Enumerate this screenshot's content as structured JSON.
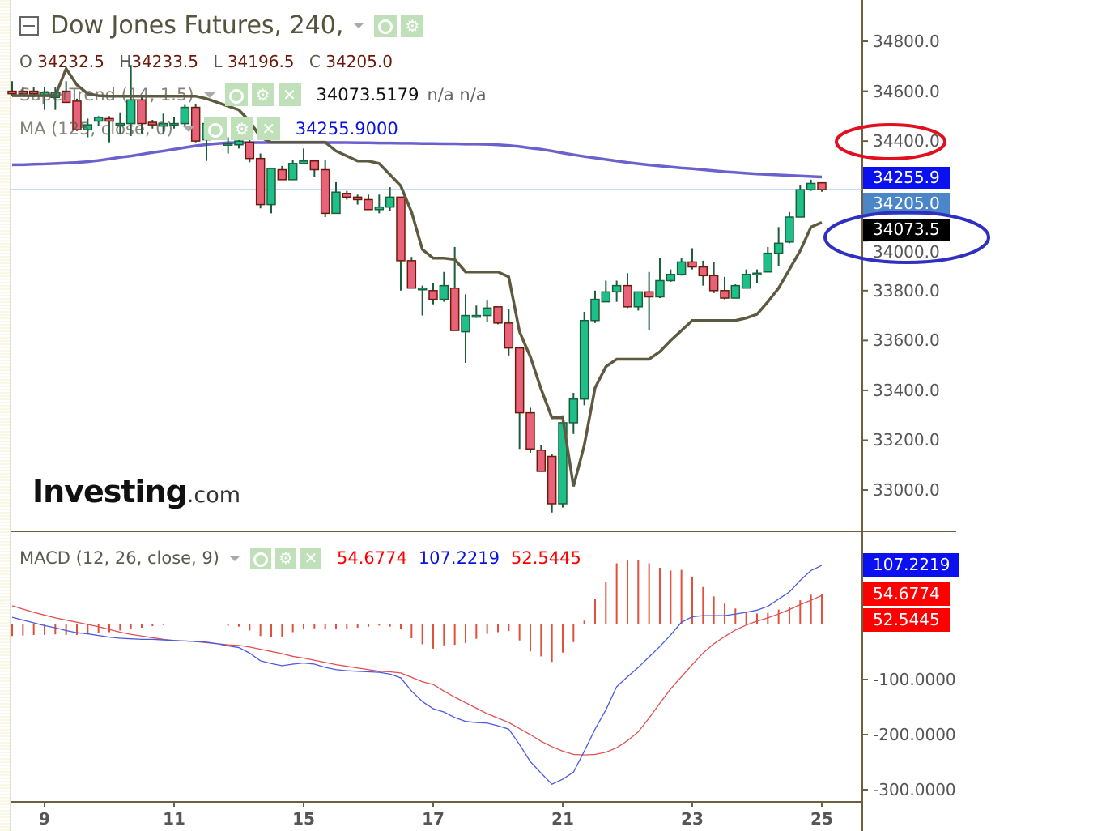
{
  "header": {
    "title": "Dow Jones Futures, 240,",
    "ohlc": {
      "o_label": "O",
      "o": "34232.5",
      "h_label": "H",
      "h": "34233.5",
      "l_label": "L",
      "l": "34196.5",
      "c_label": "C",
      "c": "34205.0"
    }
  },
  "indicators": {
    "supertrend": {
      "label": "SuperTrend (14, 1.5)",
      "value": "34073.5179",
      "extra": "n/a n/a",
      "color": "#5e5a40"
    },
    "ma": {
      "label": "MA (125, close, 0)",
      "value": "34255.9000",
      "color": "#5a50c8"
    },
    "macd": {
      "label": "MACD (12, 26, close, 9)",
      "hist_value": "54.6774",
      "macd_value": "107.2219",
      "signal_value": "52.5445"
    }
  },
  "price_tags": {
    "ma": "34255.9",
    "last": "34205.0",
    "supertrend": "34073.5"
  },
  "macd_tags": {
    "macd": "107.2219",
    "hist": "54.6774",
    "signal": "52.5445"
  },
  "price_axis_labels": [
    "34800.0",
    "34600.0",
    "34400.0",
    "34000.0",
    "33800.0",
    "33600.0",
    "33400.0",
    "33200.0",
    "33000.0"
  ],
  "macd_axis_labels": [
    "-100.0000",
    "-200.0000",
    "-300.0000"
  ],
  "x_axis_labels": [
    "9",
    "11",
    "15",
    "17",
    "21",
    "23",
    "25"
  ],
  "logo": {
    "main": "Investing",
    "suffix": ".com"
  },
  "colors": {
    "up": "#1fbf8a",
    "up_border": "#1a5e3a",
    "down": "#e8637a",
    "down_border": "#6b1a0a",
    "macd": "#4a5ae0",
    "signal": "#e05050",
    "hist": "#e0503a",
    "annotation_red": "#e01020",
    "annotation_blue": "#3030c0"
  },
  "chart_data": {
    "type": "candlestick",
    "title": "Dow Jones Futures, 240,",
    "price_ylim": [
      32838,
      34966
    ],
    "price_ticks": [
      34800,
      34600,
      34400,
      34000,
      33800,
      33600,
      33400,
      33200,
      33000
    ],
    "x_ticks": [
      {
        "label": "9",
        "candle": 3
      },
      {
        "label": "11",
        "candle": 15
      },
      {
        "label": "15",
        "candle": 27
      },
      {
        "label": "17",
        "candle": 39
      },
      {
        "label": "21",
        "candle": 51
      },
      {
        "label": "23",
        "candle": 63
      },
      {
        "label": "25",
        "candle": 75
      }
    ],
    "last_price": 34205.0,
    "candles_ohlc": [
      [
        34600,
        34640,
        34580,
        34590
      ],
      [
        34600,
        34615,
        34580,
        34590
      ],
      [
        34600,
        34615,
        34575,
        34590
      ],
      [
        34580,
        34615,
        34525,
        34595
      ],
      [
        34575,
        34615,
        34525,
        34595
      ],
      [
        34600,
        34640,
        34555,
        34555
      ],
      [
        34560,
        34570,
        34440,
        34445
      ],
      [
        34445,
        34490,
        34415,
        34465
      ],
      [
        34480,
        34500,
        34460,
        34495
      ],
      [
        34490,
        34500,
        34395,
        34480
      ],
      [
        34470,
        34515,
        34430,
        34470
      ],
      [
        34470,
        34705,
        34420,
        34565
      ],
      [
        34565,
        34580,
        34430,
        34470
      ],
      [
        34475,
        34485,
        34450,
        34465
      ],
      [
        34460,
        34510,
        34430,
        34470
      ],
      [
        34470,
        34495,
        34450,
        34470
      ],
      [
        34470,
        34545,
        34460,
        34535
      ],
      [
        34535,
        34550,
        34395,
        34400
      ],
      [
        34405,
        34475,
        34320,
        34470
      ],
      [
        34470,
        34470,
        34435,
        34445
      ],
      [
        34385,
        34415,
        34350,
        34390
      ],
      [
        34385,
        34435,
        34370,
        34400
      ],
      [
        34395,
        34405,
        34315,
        34330
      ],
      [
        34330,
        34350,
        34130,
        34145
      ],
      [
        34145,
        34290,
        34110,
        34290
      ],
      [
        34285,
        34300,
        34245,
        34245
      ],
      [
        34245,
        34325,
        34245,
        34310
      ],
      [
        34310,
        34370,
        34310,
        34320
      ],
      [
        34320,
        34320,
        34255,
        34285
      ],
      [
        34285,
        34325,
        34095,
        34110
      ],
      [
        34110,
        34235,
        34110,
        34195
      ],
      [
        34190,
        34200,
        34165,
        34175
      ],
      [
        34175,
        34185,
        34145,
        34165
      ],
      [
        34165,
        34185,
        34125,
        34125
      ],
      [
        34125,
        34185,
        34110,
        34135
      ],
      [
        34135,
        34215,
        34120,
        34175
      ],
      [
        34175,
        34175,
        33800,
        33920
      ],
      [
        33920,
        33935,
        33810,
        33810
      ],
      [
        33810,
        33820,
        33700,
        33810
      ],
      [
        33800,
        33830,
        33745,
        33765
      ],
      [
        33765,
        33875,
        33755,
        33820
      ],
      [
        33810,
        33975,
        33640,
        33640
      ],
      [
        33635,
        33785,
        33510,
        33700
      ],
      [
        33700,
        33740,
        33690,
        33700
      ],
      [
        33700,
        33760,
        33675,
        33730
      ],
      [
        33735,
        33735,
        33665,
        33670
      ],
      [
        33670,
        33725,
        33540,
        33570
      ],
      [
        33570,
        33570,
        33165,
        33310
      ],
      [
        33310,
        33330,
        33150,
        33165
      ],
      [
        33160,
        33180,
        33075,
        33075
      ],
      [
        33135,
        33145,
        32910,
        32945
      ],
      [
        32945,
        33300,
        32930,
        33270
      ],
      [
        33270,
        33390,
        33225,
        33365
      ],
      [
        33365,
        33715,
        33340,
        33680
      ],
      [
        33680,
        33800,
        33670,
        33765
      ],
      [
        33755,
        33840,
        33755,
        33795
      ],
      [
        33795,
        33840,
        33755,
        33820
      ],
      [
        33820,
        33870,
        33730,
        33735
      ],
      [
        33735,
        33795,
        33720,
        33795
      ],
      [
        33795,
        33875,
        33640,
        33775
      ],
      [
        33775,
        33930,
        33770,
        33840
      ],
      [
        33840,
        33885,
        33835,
        33865
      ],
      [
        33865,
        33930,
        33860,
        33915
      ],
      [
        33915,
        33970,
        33885,
        33895
      ],
      [
        33895,
        33920,
        33820,
        33860
      ],
      [
        33860,
        33915,
        33790,
        33800
      ],
      [
        33800,
        33855,
        33765,
        33770
      ],
      [
        33770,
        33825,
        33770,
        33820
      ],
      [
        33810,
        33885,
        33810,
        33865
      ],
      [
        33870,
        33885,
        33830,
        33870
      ],
      [
        33875,
        33975,
        33875,
        33950
      ],
      [
        33950,
        34055,
        33900,
        33990
      ],
      [
        33995,
        34115,
        33990,
        34095
      ],
      [
        34095,
        34225,
        34095,
        34205
      ],
      [
        34205,
        34245,
        34200,
        34230
      ],
      [
        34232.5,
        34233.5,
        34196.5,
        34205.0
      ]
    ],
    "supertrend": [
      34582,
      34582,
      34582,
      34582,
      34582,
      34690,
      34625,
      34590,
      34582,
      34580,
      34580,
      34580,
      34580,
      34580,
      34580,
      34580,
      34580,
      34580,
      34570,
      34555,
      34540,
      34525,
      34480,
      34415,
      34395,
      34395,
      34395,
      34395,
      34395,
      34395,
      34360,
      34340,
      34320,
      34320,
      34310,
      34265,
      34220,
      34115,
      33965,
      33930,
      33930,
      33925,
      33875,
      33875,
      33875,
      33875,
      33855,
      33635,
      33535,
      33405,
      33290,
      33290,
      33015,
      33180,
      33410,
      33495,
      33525,
      33525,
      33525,
      33525,
      33555,
      33600,
      33640,
      33680,
      33680,
      33680,
      33680,
      33680,
      33690,
      33705,
      33755,
      33810,
      33885,
      33960,
      34055,
      34073.5
    ],
    "ma": [
      34305,
      34305,
      34307,
      34308,
      34310,
      34312,
      34314,
      34317,
      34322,
      34328,
      34335,
      34340,
      34347,
      34354,
      34360,
      34367,
      34374,
      34381,
      34386,
      34390,
      34393,
      34394,
      34394,
      34394,
      34394,
      34394,
      34394,
      34394,
      34394,
      34394,
      34394,
      34394,
      34393,
      34393,
      34392,
      34392,
      34391,
      34391,
      34390,
      34390,
      34389,
      34389,
      34388,
      34388,
      34387,
      34385,
      34382,
      34378,
      34372,
      34367,
      34360,
      34352,
      34345,
      34338,
      34332,
      34326,
      34320,
      34314,
      34309,
      34304,
      34300,
      34296,
      34292,
      34289,
      34285,
      34281,
      34277,
      34274,
      34271,
      34268,
      34266,
      34264,
      34262,
      34260,
      34258,
      34255.9
    ],
    "macd_ylim": [
      -322,
      169
    ],
    "macd_ticks": [
      -100,
      -200,
      -300
    ],
    "macd_line": [
      13,
      8,
      3,
      -2,
      -6,
      -11,
      -15,
      -17,
      -20,
      -23,
      -25,
      -26,
      -27,
      -27,
      -28,
      -29,
      -30,
      -31,
      -32,
      -35,
      -39,
      -42,
      -52,
      -66,
      -71,
      -75,
      -72,
      -70,
      -72,
      -78,
      -82,
      -84,
      -85,
      -86,
      -87,
      -90,
      -97,
      -121,
      -140,
      -153,
      -159,
      -169,
      -176,
      -178,
      -179,
      -184,
      -190,
      -218,
      -249,
      -270,
      -290,
      -281,
      -268,
      -230,
      -190,
      -155,
      -113,
      -95,
      -78,
      -59,
      -40,
      -19,
      4,
      14,
      16,
      16,
      16,
      19,
      22,
      26,
      33,
      46,
      59,
      80,
      98,
      107.2219
    ],
    "signal_line": [
      34,
      28,
      22,
      17,
      12,
      8,
      4,
      0,
      -4,
      -9,
      -14,
      -18,
      -21,
      -24,
      -27,
      -29,
      -30,
      -31,
      -33,
      -35,
      -37,
      -38,
      -41,
      -45,
      -49,
      -53,
      -58,
      -61,
      -65,
      -69,
      -73,
      -76,
      -79,
      -82,
      -85,
      -86,
      -88,
      -96,
      -104,
      -109,
      -121,
      -132,
      -142,
      -152,
      -162,
      -170,
      -178,
      -189,
      -200,
      -212,
      -222,
      -230,
      -236,
      -237,
      -236,
      -232,
      -224,
      -211,
      -195,
      -170,
      -143,
      -117,
      -95,
      -73,
      -52,
      -35,
      -22,
      -10,
      -1,
      6,
      12,
      19,
      27,
      36,
      44,
      52.5445
    ],
    "histogram": [
      -21,
      -20,
      -19,
      -19,
      -18,
      -19,
      -19,
      -17,
      -16,
      -14,
      -11,
      -8,
      -6,
      -3,
      -1,
      0,
      0,
      0,
      1,
      0,
      -2,
      -4,
      -11,
      -21,
      -22,
      -22,
      -14,
      -9,
      -7,
      -9,
      -9,
      -8,
      -6,
      -4,
      -2,
      -4,
      -9,
      -25,
      -36,
      -44,
      -38,
      -37,
      -34,
      -26,
      -17,
      -14,
      -12,
      -29,
      -49,
      -58,
      -68,
      -51,
      -32,
      7,
      46,
      77,
      111,
      116,
      117,
      111,
      103,
      98,
      99,
      87,
      68,
      51,
      38,
      29,
      23,
      20,
      21,
      27,
      32,
      44,
      54,
      54.6774
    ]
  }
}
